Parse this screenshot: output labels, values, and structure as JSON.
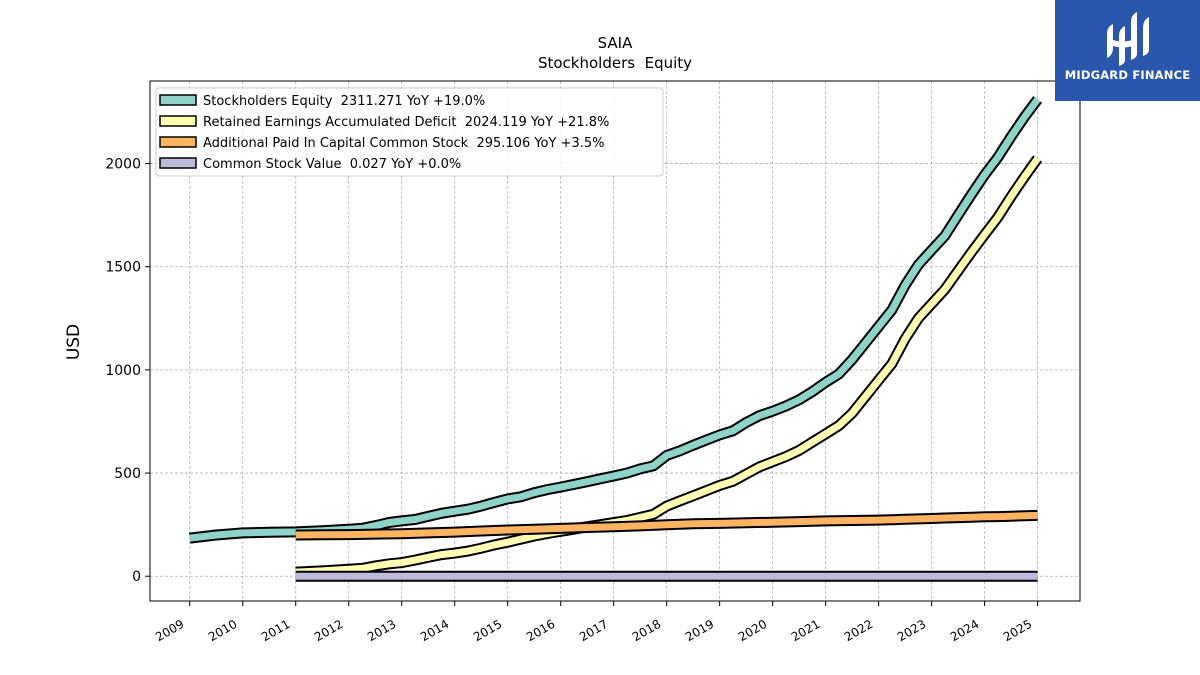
{
  "brand": {
    "name": "MIDGARD FINANCE",
    "bg_color": "#2a57ad"
  },
  "chart_data": {
    "type": "area",
    "title": "SAIA",
    "subtitle": "Stockholders  Equity",
    "ylabel": "USD",
    "xlabel": "",
    "xlim": [
      2008.25,
      2025.8
    ],
    "ylim": [
      -120,
      2400
    ],
    "yticks": [
      0,
      500,
      1000,
      1500,
      2000
    ],
    "xticks": [
      "2009",
      "2010",
      "2011",
      "2012",
      "2013",
      "2014",
      "2015",
      "2016",
      "2017",
      "2018",
      "2019",
      "2020",
      "2021",
      "2022",
      "2023",
      "2024",
      "2025"
    ],
    "grid": true,
    "legend_position": "top-left",
    "series": [
      {
        "name": "Stockholders Equity  2311.271 YoY +19.0%",
        "color": "#8dd3c7",
        "x": [
          2009.0,
          2009.5,
          2010.0,
          2010.5,
          2011.0,
          2011.5,
          2012.0,
          2012.25,
          2012.5,
          2012.75,
          2013.0,
          2013.25,
          2013.5,
          2013.75,
          2014.0,
          2014.25,
          2014.5,
          2014.75,
          2015.0,
          2015.25,
          2015.5,
          2015.75,
          2016.0,
          2016.25,
          2016.5,
          2016.75,
          2017.0,
          2017.25,
          2017.5,
          2017.75,
          2018.0,
          2018.25,
          2018.5,
          2018.75,
          2019.0,
          2019.25,
          2019.5,
          2019.75,
          2020.0,
          2020.25,
          2020.5,
          2020.75,
          2021.0,
          2021.25,
          2021.5,
          2021.75,
          2022.0,
          2022.25,
          2022.5,
          2022.75,
          2023.0,
          2023.25,
          2023.5,
          2023.75,
          2024.0,
          2024.25,
          2024.5,
          2024.75,
          2025.0
        ],
        "values": [
          185,
          200,
          210,
          213,
          215,
          220,
          228,
          232,
          245,
          260,
          268,
          275,
          290,
          305,
          315,
          325,
          340,
          358,
          375,
          385,
          405,
          420,
          432,
          445,
          458,
          472,
          486,
          500,
          520,
          535,
          585,
          608,
          635,
          660,
          685,
          705,
          745,
          778,
          800,
          825,
          855,
          895,
          940,
          980,
          1050,
          1130,
          1210,
          1290,
          1410,
          1510,
          1580,
          1650,
          1750,
          1850,
          1945,
          2030,
          2130,
          2225,
          2311
        ]
      },
      {
        "name": "Retained Earnings Accumulated Deficit  2024.119 YoY +21.8%",
        "color": "#ffffb3",
        "x": [
          2011.0,
          2011.5,
          2012.0,
          2012.25,
          2012.5,
          2012.75,
          2013.0,
          2013.25,
          2013.5,
          2013.75,
          2014.0,
          2014.25,
          2014.5,
          2014.75,
          2015.0,
          2015.25,
          2015.5,
          2015.75,
          2016.0,
          2016.25,
          2016.5,
          2016.75,
          2017.0,
          2017.25,
          2017.5,
          2017.75,
          2018.0,
          2018.25,
          2018.5,
          2018.75,
          2019.0,
          2019.25,
          2019.5,
          2019.75,
          2020.0,
          2020.25,
          2020.5,
          2020.75,
          2021.0,
          2021.25,
          2021.5,
          2021.75,
          2022.0,
          2022.25,
          2022.5,
          2022.75,
          2023.0,
          2023.25,
          2023.5,
          2023.75,
          2024.0,
          2024.25,
          2024.5,
          2024.75,
          2025.0
        ],
        "values": [
          20,
          26,
          34,
          38,
          50,
          60,
          66,
          78,
          92,
          105,
          112,
          122,
          136,
          152,
          165,
          180,
          195,
          207,
          218,
          228,
          240,
          250,
          260,
          270,
          285,
          300,
          340,
          365,
          390,
          415,
          440,
          460,
          495,
          530,
          555,
          580,
          610,
          650,
          690,
          730,
          790,
          870,
          950,
          1030,
          1150,
          1250,
          1320,
          1390,
          1480,
          1570,
          1655,
          1740,
          1840,
          1935,
          2024
        ]
      },
      {
        "name": "Additional Paid In Capital Common Stock  295.106 YoY +3.5%",
        "color": "#fdb462",
        "x": [
          2011.0,
          2011.5,
          2012.0,
          2012.5,
          2013.0,
          2013.5,
          2014.0,
          2014.5,
          2015.0,
          2015.5,
          2016.0,
          2016.5,
          2017.0,
          2017.5,
          2018.0,
          2018.5,
          2019.0,
          2019.5,
          2020.0,
          2020.5,
          2021.0,
          2021.5,
          2022.0,
          2022.25,
          2022.5,
          2022.75,
          2023.0,
          2023.25,
          2023.5,
          2023.75,
          2024.0,
          2024.25,
          2024.5,
          2024.75,
          2025.0
        ],
        "values": [
          200,
          201,
          202,
          204,
          206,
          210,
          214,
          219,
          224,
          228,
          232,
          236,
          240,
          244,
          250,
          254,
          256,
          259,
          262,
          265,
          268,
          270,
          272,
          274,
          276,
          278,
          280,
          282,
          284,
          286,
          288,
          289,
          291,
          293,
          295
        ]
      },
      {
        "name": "Common Stock Value  0.027 YoY +0.0%",
        "color": "#bebada",
        "x": [
          2011.0,
          2025.0
        ],
        "values": [
          0.027,
          0.027
        ]
      }
    ]
  }
}
